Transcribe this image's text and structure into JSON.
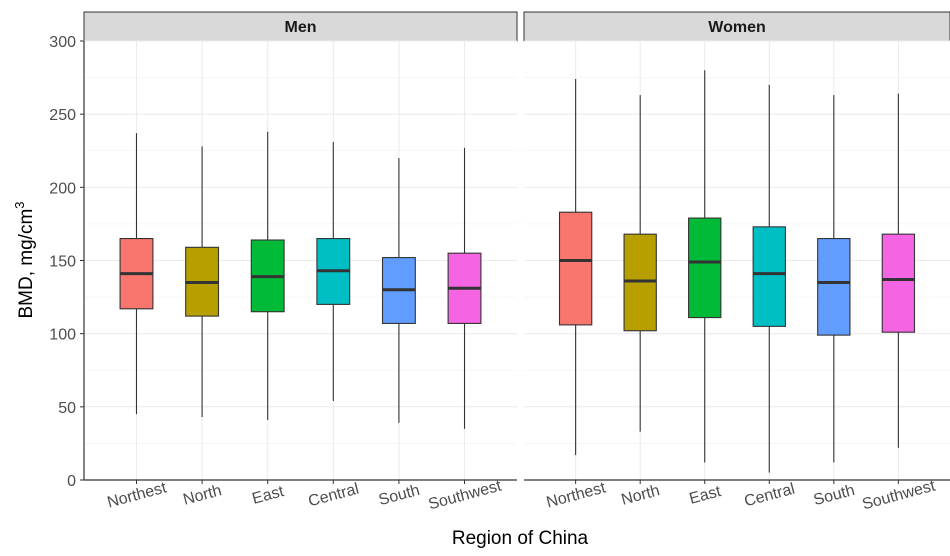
{
  "chart_data": {
    "type": "boxplot",
    "xlabel": "Region of China",
    "ylabel_base": "BMD, mg/cm",
    "ylabel_sup": "3",
    "ylim": [
      0,
      300
    ],
    "yticks": [
      0,
      50,
      100,
      150,
      200,
      250,
      300
    ],
    "grid": true,
    "categories": [
      "Northest",
      "North",
      "East",
      "Central",
      "South",
      "Southwest"
    ],
    "colors": [
      "#F8766D",
      "#B79F00",
      "#00BA38",
      "#00BFC4",
      "#619CFF",
      "#F564E3"
    ],
    "panels": [
      {
        "name": "Men",
        "boxes": [
          {
            "min": 45,
            "q1": 117,
            "median": 141,
            "q3": 165,
            "max": 237
          },
          {
            "min": 43,
            "q1": 112,
            "median": 135,
            "q3": 159,
            "max": 228
          },
          {
            "min": 41,
            "q1": 115,
            "median": 139,
            "q3": 164,
            "max": 238
          },
          {
            "min": 54,
            "q1": 120,
            "median": 143,
            "q3": 165,
            "max": 231
          },
          {
            "min": 39,
            "q1": 107,
            "median": 130,
            "q3": 152,
            "max": 220
          },
          {
            "min": 35,
            "q1": 107,
            "median": 131,
            "q3": 155,
            "max": 227
          }
        ]
      },
      {
        "name": "Women",
        "boxes": [
          {
            "min": 17,
            "q1": 106,
            "median": 150,
            "q3": 183,
            "max": 274
          },
          {
            "min": 33,
            "q1": 102,
            "median": 136,
            "q3": 168,
            "max": 263
          },
          {
            "min": 12,
            "q1": 111,
            "median": 149,
            "q3": 179,
            "max": 280
          },
          {
            "min": 5,
            "q1": 105,
            "median": 141,
            "q3": 173,
            "max": 270
          },
          {
            "min": 12,
            "q1": 99,
            "median": 135,
            "q3": 165,
            "max": 263
          },
          {
            "min": 22,
            "q1": 101,
            "median": 137,
            "q3": 168,
            "max": 264
          }
        ]
      }
    ]
  }
}
